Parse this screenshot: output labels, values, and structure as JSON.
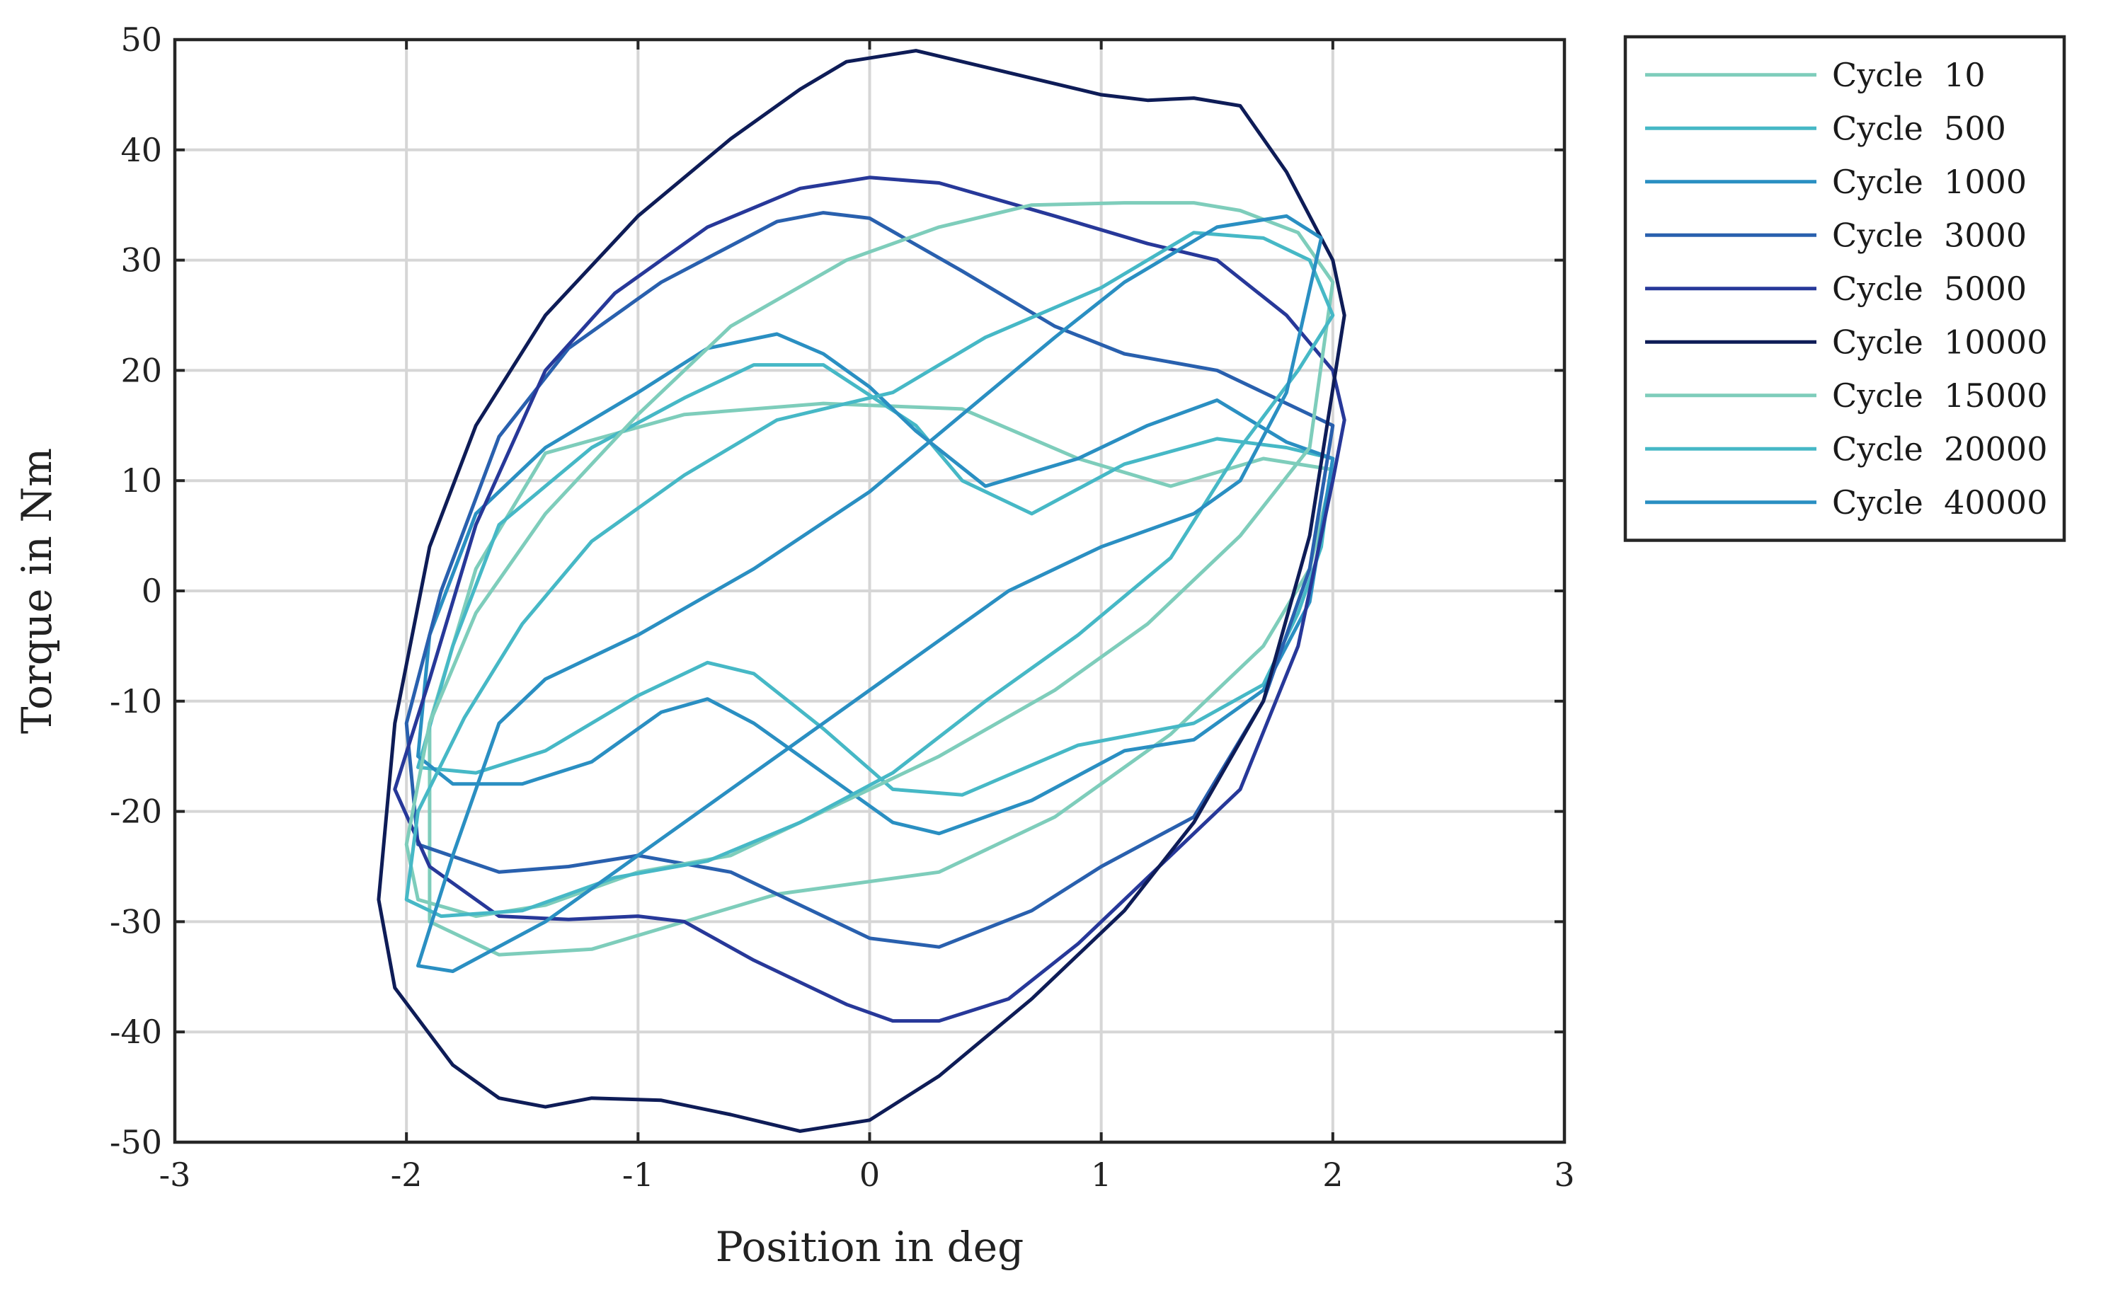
{
  "chart_data": {
    "type": "line",
    "title": "",
    "xlabel": "Position in deg",
    "ylabel": "Torque in Nm",
    "xlim": [
      -3,
      3
    ],
    "ylim": [
      -50,
      50
    ],
    "grid": true,
    "legend_position": "outside-top-right",
    "x_ticks": [
      {
        "value": -3,
        "label": "-3"
      },
      {
        "value": -2,
        "label": "-2"
      },
      {
        "value": -1,
        "label": "-1"
      },
      {
        "value": 0,
        "label": "0"
      },
      {
        "value": 1,
        "label": "1"
      },
      {
        "value": 2,
        "label": "2"
      },
      {
        "value": 3,
        "label": "3"
      }
    ],
    "y_ticks": [
      {
        "value": 50,
        "label": "50"
      },
      {
        "value": 40,
        "label": "40"
      },
      {
        "value": 30,
        "label": "30"
      },
      {
        "value": 20,
        "label": "20"
      },
      {
        "value": 10,
        "label": "10"
      },
      {
        "value": 0,
        "label": "0"
      },
      {
        "value": -10,
        "label": "-10"
      },
      {
        "value": -20,
        "label": "-20"
      },
      {
        "value": -30,
        "label": "-30"
      },
      {
        "value": -40,
        "label": "-40"
      },
      {
        "value": -50,
        "label": "-50"
      }
    ],
    "series": [
      {
        "name": "Cycle  10",
        "color": "#7ecdbb",
        "points": [
          [
            2.0,
            11
          ],
          [
            1.7,
            12
          ],
          [
            1.3,
            9.5
          ],
          [
            0.9,
            12
          ],
          [
            0.4,
            16.5
          ],
          [
            -0.2,
            17
          ],
          [
            -0.8,
            16
          ],
          [
            -1.4,
            12.5
          ],
          [
            -1.7,
            2
          ],
          [
            -1.9,
            -12
          ],
          [
            -1.9,
            -30
          ],
          [
            -1.6,
            -33
          ],
          [
            -1.2,
            -32.5
          ],
          [
            -0.8,
            -30
          ],
          [
            -0.4,
            -27.5
          ],
          [
            0.3,
            -25.5
          ],
          [
            0.8,
            -20.5
          ],
          [
            1.3,
            -13
          ],
          [
            1.7,
            -5
          ],
          [
            1.9,
            2
          ],
          [
            2.0,
            11
          ]
        ]
      },
      {
        "name": "Cycle  500",
        "color": "#46b8c6",
        "points": [
          [
            2.0,
            12
          ],
          [
            1.8,
            13
          ],
          [
            1.5,
            13.8
          ],
          [
            1.1,
            11.5
          ],
          [
            0.7,
            7
          ],
          [
            0.4,
            10
          ],
          [
            0.2,
            15
          ],
          [
            -0.2,
            20.5
          ],
          [
            -0.5,
            20.5
          ],
          [
            -0.8,
            17.5
          ],
          [
            -1.2,
            13
          ],
          [
            -1.6,
            6
          ],
          [
            -1.8,
            -5
          ],
          [
            -1.95,
            -16
          ],
          [
            -1.7,
            -16.5
          ],
          [
            -1.4,
            -14.5
          ],
          [
            -1.0,
            -9.5
          ],
          [
            -0.7,
            -6.5
          ],
          [
            -0.5,
            -7.5
          ],
          [
            -0.2,
            -12.5
          ],
          [
            0.1,
            -18
          ],
          [
            0.4,
            -18.5
          ],
          [
            0.9,
            -14
          ],
          [
            1.4,
            -12
          ],
          [
            1.7,
            -8.5
          ],
          [
            1.85,
            -2
          ],
          [
            1.95,
            4
          ],
          [
            2.0,
            12
          ]
        ]
      },
      {
        "name": "Cycle  1000",
        "color": "#2a8fc2",
        "points": [
          [
            2.0,
            12
          ],
          [
            1.8,
            13.5
          ],
          [
            1.5,
            17.3
          ],
          [
            1.2,
            15
          ],
          [
            0.9,
            12
          ],
          [
            0.5,
            9.5
          ],
          [
            0.2,
            14.5
          ],
          [
            0,
            18.5
          ],
          [
            -0.2,
            21.5
          ],
          [
            -0.4,
            23.3
          ],
          [
            -0.7,
            22
          ],
          [
            -1.0,
            18
          ],
          [
            -1.4,
            13
          ],
          [
            -1.7,
            7
          ],
          [
            -1.9,
            -4
          ],
          [
            -1.95,
            -15
          ],
          [
            -1.8,
            -17.5
          ],
          [
            -1.5,
            -17.5
          ],
          [
            -1.2,
            -15.5
          ],
          [
            -0.9,
            -11
          ],
          [
            -0.7,
            -9.8
          ],
          [
            -0.5,
            -12
          ],
          [
            -0.2,
            -16.5
          ],
          [
            0.1,
            -21
          ],
          [
            0.3,
            -22
          ],
          [
            0.7,
            -19
          ],
          [
            1.1,
            -14.5
          ],
          [
            1.4,
            -13.5
          ],
          [
            1.7,
            -9
          ],
          [
            1.9,
            -1
          ],
          [
            2.0,
            12
          ]
        ]
      },
      {
        "name": "Cycle  3000",
        "color": "#2960ae",
        "points": [
          [
            2.0,
            15
          ],
          [
            1.8,
            17
          ],
          [
            1.5,
            20
          ],
          [
            1.1,
            21.5
          ],
          [
            0.8,
            24
          ],
          [
            0.4,
            29
          ],
          [
            0,
            33.8
          ],
          [
            -0.2,
            34.3
          ],
          [
            -0.4,
            33.5
          ],
          [
            -0.9,
            28
          ],
          [
            -1.3,
            22
          ],
          [
            -1.6,
            14
          ],
          [
            -1.85,
            0
          ],
          [
            -2.0,
            -12
          ],
          [
            -1.95,
            -23
          ],
          [
            -1.6,
            -25.5
          ],
          [
            -1.3,
            -25
          ],
          [
            -1.0,
            -24
          ],
          [
            -0.6,
            -25.5
          ],
          [
            -0.2,
            -29.5
          ],
          [
            0,
            -31.5
          ],
          [
            0.3,
            -32.3
          ],
          [
            0.7,
            -29
          ],
          [
            1.0,
            -25
          ],
          [
            1.4,
            -20.5
          ],
          [
            1.7,
            -10
          ],
          [
            1.9,
            2
          ],
          [
            2.0,
            15
          ]
        ]
      },
      {
        "name": "Cycle  5000",
        "color": "#273899",
        "points": [
          [
            2.05,
            15.5
          ],
          [
            2.0,
            20
          ],
          [
            1.8,
            25
          ],
          [
            1.5,
            30
          ],
          [
            1.2,
            31.5
          ],
          [
            0.8,
            34
          ],
          [
            0.3,
            37
          ],
          [
            0,
            37.5
          ],
          [
            -0.3,
            36.5
          ],
          [
            -0.7,
            33
          ],
          [
            -1.1,
            27
          ],
          [
            -1.4,
            20
          ],
          [
            -1.7,
            6
          ],
          [
            -1.9,
            -8
          ],
          [
            -2.05,
            -18
          ],
          [
            -1.9,
            -25
          ],
          [
            -1.6,
            -29.5
          ],
          [
            -1.3,
            -29.8
          ],
          [
            -1.0,
            -29.5
          ],
          [
            -0.8,
            -30
          ],
          [
            -0.5,
            -33.5
          ],
          [
            -0.1,
            -37.5
          ],
          [
            0.1,
            -39
          ],
          [
            0.3,
            -39
          ],
          [
            0.6,
            -37
          ],
          [
            0.9,
            -32
          ],
          [
            1.2,
            -26
          ],
          [
            1.6,
            -18
          ],
          [
            1.85,
            -5
          ],
          [
            2.0,
            10
          ],
          [
            2.05,
            15.5
          ]
        ]
      },
      {
        "name": "Cycle  10000",
        "color": "#0e1c57",
        "points": [
          [
            2.05,
            25
          ],
          [
            2.0,
            30
          ],
          [
            1.8,
            38
          ],
          [
            1.6,
            44
          ],
          [
            1.4,
            44.7
          ],
          [
            1.2,
            44.5
          ],
          [
            1.0,
            45
          ],
          [
            0.6,
            47
          ],
          [
            0.2,
            49
          ],
          [
            -0.1,
            48
          ],
          [
            -0.3,
            45.5
          ],
          [
            -0.6,
            41
          ],
          [
            -1.0,
            34
          ],
          [
            -1.4,
            25
          ],
          [
            -1.7,
            15
          ],
          [
            -1.9,
            4
          ],
          [
            -2.05,
            -12
          ],
          [
            -2.12,
            -28
          ],
          [
            -2.05,
            -36
          ],
          [
            -1.8,
            -43
          ],
          [
            -1.6,
            -46
          ],
          [
            -1.4,
            -46.8
          ],
          [
            -1.2,
            -46
          ],
          [
            -0.9,
            -46.2
          ],
          [
            -0.6,
            -47.5
          ],
          [
            -0.3,
            -49
          ],
          [
            0,
            -48
          ],
          [
            0.3,
            -44
          ],
          [
            0.7,
            -37
          ],
          [
            1.1,
            -29
          ],
          [
            1.4,
            -21
          ],
          [
            1.7,
            -10
          ],
          [
            1.9,
            5
          ],
          [
            2.05,
            25
          ]
        ]
      },
      {
        "name": "Cycle  15000",
        "color": "#7ecdbb",
        "points": [
          [
            2.0,
            28
          ],
          [
            1.85,
            32.5
          ],
          [
            1.6,
            34.5
          ],
          [
            1.4,
            35.2
          ],
          [
            1.1,
            35.2
          ],
          [
            0.7,
            35
          ],
          [
            0.3,
            33
          ],
          [
            -0.1,
            30
          ],
          [
            -0.6,
            24
          ],
          [
            -1.0,
            16
          ],
          [
            -1.4,
            7
          ],
          [
            -1.7,
            -2
          ],
          [
            -1.9,
            -12
          ],
          [
            -2.0,
            -23
          ],
          [
            -1.95,
            -28
          ],
          [
            -1.7,
            -29.5
          ],
          [
            -1.4,
            -28.5
          ],
          [
            -1.0,
            -25.5
          ],
          [
            -0.6,
            -24
          ],
          [
            -0.2,
            -20
          ],
          [
            0.3,
            -15
          ],
          [
            0.8,
            -9
          ],
          [
            1.2,
            -3
          ],
          [
            1.6,
            5
          ],
          [
            1.9,
            13
          ],
          [
            2.0,
            28
          ]
        ]
      },
      {
        "name": "Cycle  20000",
        "color": "#46b8c6",
        "points": [
          [
            2.0,
            25
          ],
          [
            1.9,
            30
          ],
          [
            1.7,
            32
          ],
          [
            1.4,
            32.5
          ],
          [
            1.0,
            27.5
          ],
          [
            0.5,
            23
          ],
          [
            0.1,
            18
          ],
          [
            -0.4,
            15.5
          ],
          [
            -0.8,
            10.5
          ],
          [
            -1.2,
            4.5
          ],
          [
            -1.5,
            -3
          ],
          [
            -1.75,
            -11.5
          ],
          [
            -1.95,
            -20
          ],
          [
            -2.0,
            -28
          ],
          [
            -1.85,
            -29.5
          ],
          [
            -1.5,
            -29
          ],
          [
            -1.1,
            -26
          ],
          [
            -0.7,
            -24.5
          ],
          [
            -0.3,
            -21
          ],
          [
            0.1,
            -16.5
          ],
          [
            0.5,
            -10
          ],
          [
            0.9,
            -4
          ],
          [
            1.3,
            3
          ],
          [
            1.6,
            13
          ],
          [
            1.85,
            20
          ],
          [
            2.0,
            25
          ]
        ]
      },
      {
        "name": "Cycle  40000",
        "color": "#2a8fc2",
        "points": [
          [
            1.95,
            32
          ],
          [
            1.8,
            34
          ],
          [
            1.5,
            33
          ],
          [
            1.1,
            28
          ],
          [
            0.8,
            23
          ],
          [
            0.4,
            16
          ],
          [
            0,
            9
          ],
          [
            -0.5,
            2
          ],
          [
            -1.0,
            -4
          ],
          [
            -1.4,
            -8
          ],
          [
            -1.6,
            -12
          ],
          [
            -1.8,
            -24
          ],
          [
            -1.95,
            -34
          ],
          [
            -1.8,
            -34.5
          ],
          [
            -1.4,
            -30
          ],
          [
            -1.0,
            -24
          ],
          [
            -0.6,
            -18
          ],
          [
            -0.2,
            -12
          ],
          [
            0.2,
            -6
          ],
          [
            0.6,
            0
          ],
          [
            1.0,
            4
          ],
          [
            1.4,
            7
          ],
          [
            1.6,
            10
          ],
          [
            1.8,
            18
          ],
          [
            1.95,
            32
          ]
        ]
      }
    ]
  }
}
